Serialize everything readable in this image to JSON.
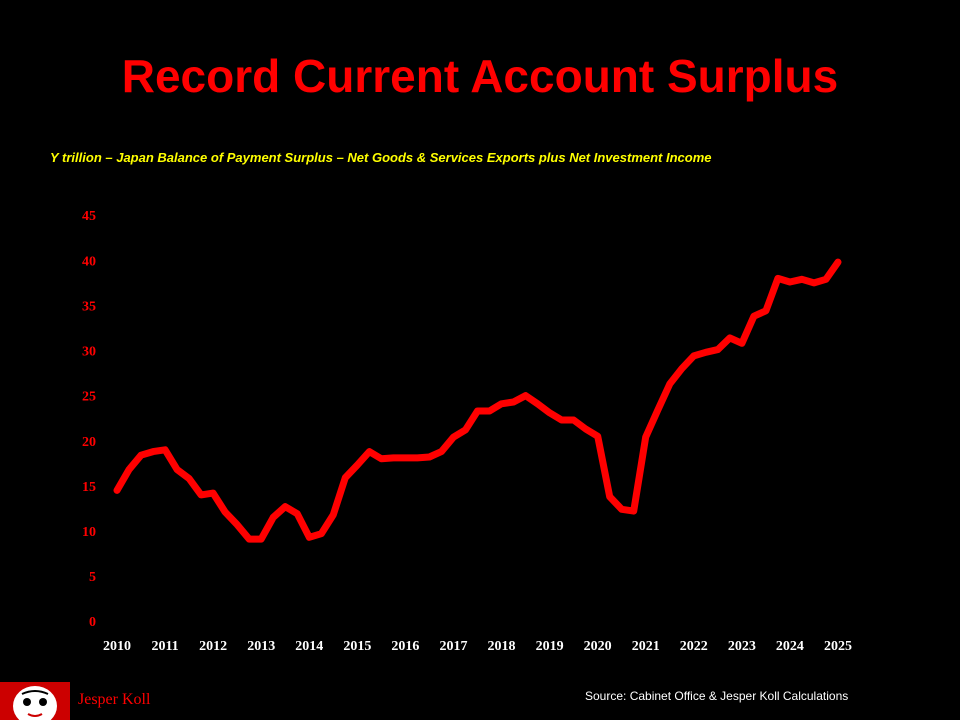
{
  "chart_data": {
    "type": "line",
    "title": "Record Current Account Surplus",
    "subtitle": "Y trillion – Japan Balance of Payment Surplus – Net Goods & Services Exports plus Net Investment Income",
    "author": "Jesper Koll",
    "source": "Source: Cabinet Office & Jesper Koll Calculations",
    "x": [
      2010,
      2010.25,
      2010.5,
      2010.75,
      2011,
      2011.25,
      2011.5,
      2011.75,
      2012,
      2012.25,
      2012.5,
      2012.75,
      2013,
      2013.25,
      2013.5,
      2013.75,
      2014,
      2014.25,
      2014.5,
      2014.75,
      2015,
      2015.25,
      2015.5,
      2015.75,
      2016,
      2016.25,
      2016.5,
      2016.75,
      2017,
      2017.25,
      2017.5,
      2017.75,
      2018,
      2018.25,
      2018.5,
      2018.75,
      2019,
      2019.25,
      2019.5,
      2019.75,
      2020,
      2020.25,
      2020.5,
      2020.75,
      2021,
      2021.25,
      2021.5,
      2021.75,
      2022,
      2022.25,
      2022.5,
      2022.75,
      2023,
      2023.25,
      2023.5,
      2023.75,
      2024,
      2024.25,
      2024.5,
      2024.75,
      2025
    ],
    "series": [
      {
        "color": "#ff0000",
        "values": [
          14.7,
          17,
          18.6,
          19,
          19.2,
          17,
          16,
          14.2,
          14.4,
          12.3,
          10.9,
          9.3,
          9.3,
          11.7,
          12.9,
          12.1,
          9.5,
          9.9,
          12,
          16.1,
          17.5,
          19,
          18.2,
          18.3,
          18.3,
          18.3,
          18.4,
          19,
          20.6,
          21.4,
          23.5,
          23.5,
          24.3,
          24.5,
          25.2,
          24.3,
          23.3,
          22.5,
          22.5,
          21.5,
          20.7,
          14,
          12.6,
          12.4,
          20.6,
          23.6,
          26.5,
          28.2,
          29.6,
          30,
          30.3,
          31.6,
          31,
          34,
          34.6,
          38.2,
          37.8,
          38.1,
          37.7,
          38.1,
          40
        ]
      }
    ],
    "xlim": [
      2010,
      2025
    ],
    "xticks": [
      2010,
      2011,
      2012,
      2013,
      2014,
      2015,
      2016,
      2017,
      2018,
      2019,
      2020,
      2021,
      2022,
      2023,
      2024,
      2025
    ],
    "ylim": [
      0,
      45
    ],
    "yticks": [
      0,
      5,
      10,
      15,
      20,
      25,
      30,
      35,
      40,
      45
    ],
    "grid": false
  }
}
